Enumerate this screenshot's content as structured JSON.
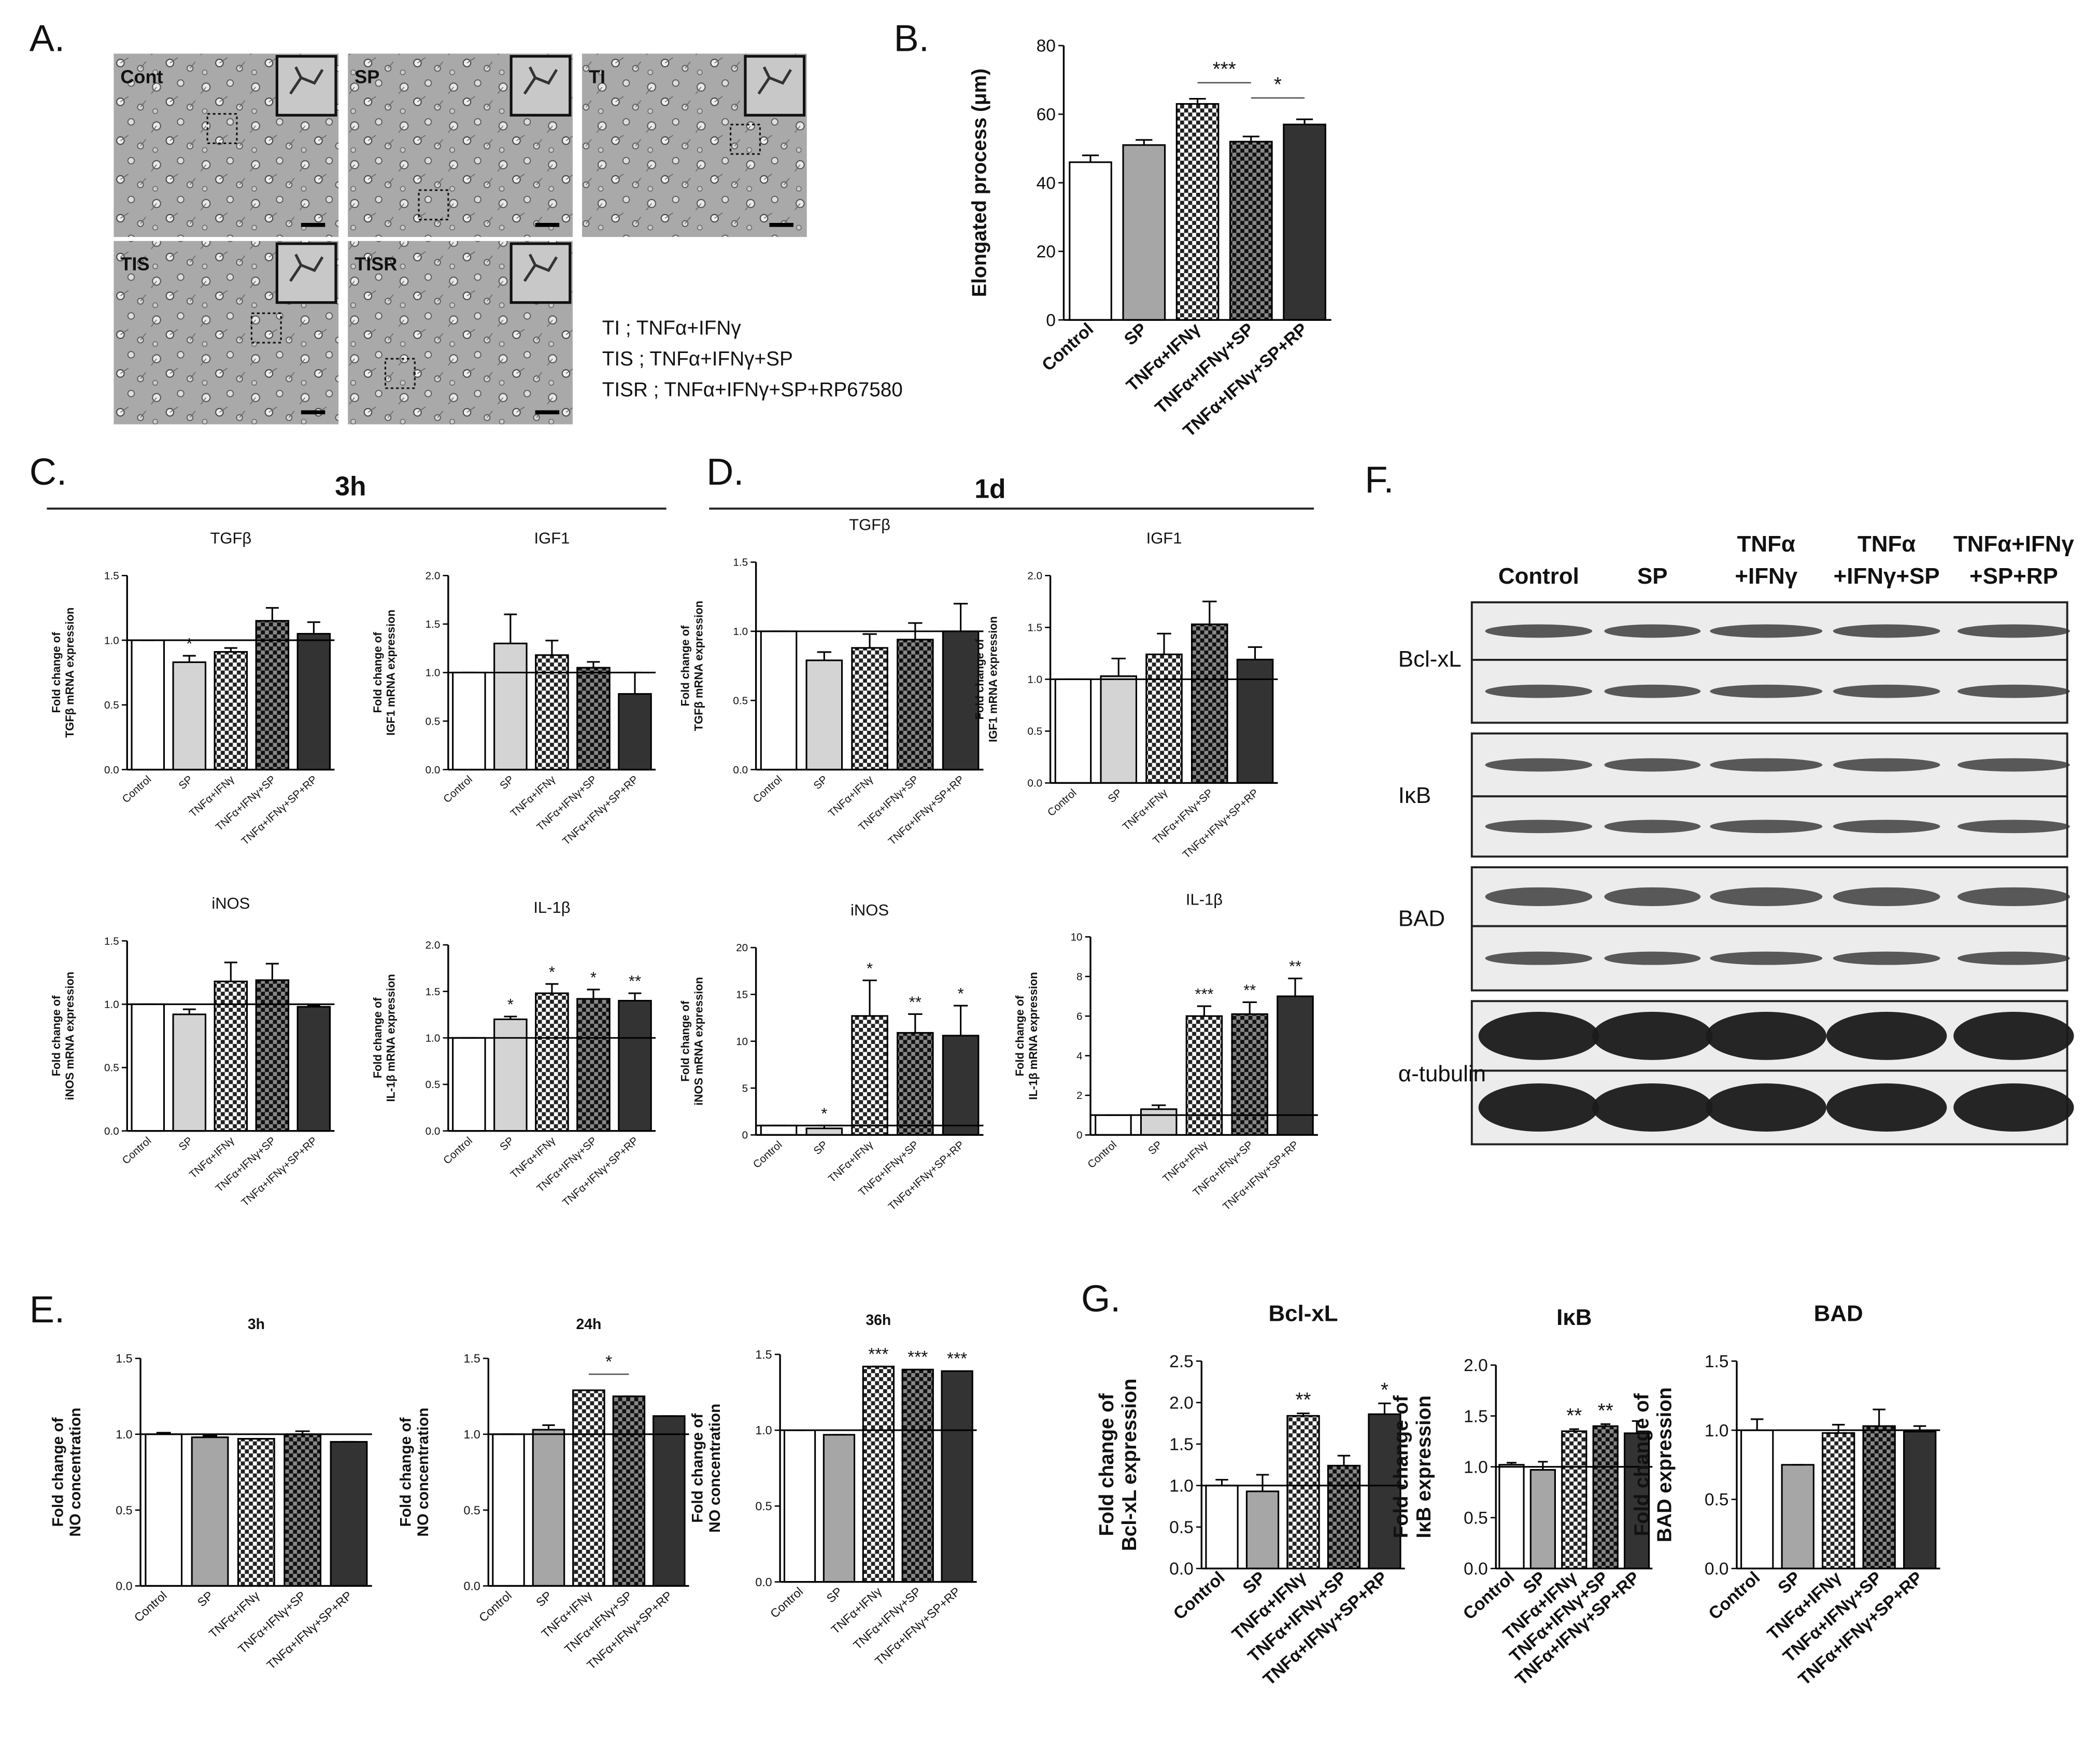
{
  "panel_labels": [
    "A.",
    "B.",
    "C.",
    "D.",
    "E.",
    "F.",
    "G."
  ],
  "time_headers": [
    "3h",
    "1d"
  ],
  "microscopy": {
    "images": [
      "Cont",
      "SP",
      "TI",
      "TIS",
      "TISR"
    ],
    "legend": [
      "TI ; TNFα+IFNγ",
      "TIS ; TNFα+IFNγ+SP",
      "TISR ; TNFα+IFNγ+SP+RP67580"
    ]
  },
  "western_blot": {
    "columns": [
      [
        "Control"
      ],
      [
        "SP"
      ],
      [
        "TNFα",
        "+IFNγ"
      ],
      [
        "TNFα",
        "+IFNγ+SP"
      ],
      [
        "TNFα+IFNγ",
        "+SP+RP"
      ]
    ],
    "rows": [
      "Bcl-xL",
      "IκB",
      "BAD",
      "α-tubulin"
    ]
  },
  "chart_data": [
    {
      "type": "bar",
      "ylabel": [
        "Elongated process (μm)"
      ],
      "categories": [
        "Control",
        "SP",
        "TNFα+IFNγ",
        "TNFα+IFNγ+SP",
        "TNFα+IFNγ+SP+RP"
      ],
      "values": [
        46,
        51,
        63,
        52,
        57
      ],
      "errors": [
        2,
        1.5,
        1.5,
        1.5,
        1.5
      ],
      "bar_fills": [
        "white",
        "mid-gray",
        "checker",
        "dark-checker",
        "black"
      ],
      "brackets": [
        {
          "from": 2,
          "to": 3,
          "text": "***"
        },
        {
          "from": 3,
          "to": 4,
          "text": "*"
        }
      ],
      "ylim": [
        0,
        80
      ],
      "yticks": [
        0,
        20,
        40,
        60,
        80
      ]
    },
    {
      "type": "bar",
      "title": "TGFβ",
      "ylabel": [
        "Fold change of",
        "TGFβ mRNA expression"
      ],
      "categories": [
        "Control",
        "SP",
        "TNFα+IFNγ",
        "TNFα+IFNγ+SP",
        "TNFα+IFNγ+SP+RP"
      ],
      "values": [
        1.0,
        0.83,
        0.91,
        1.15,
        1.05
      ],
      "errors": [
        0,
        0.05,
        0.03,
        0.1,
        0.09
      ],
      "bar_fills": [
        "white",
        "gray",
        "checker",
        "dark-checker",
        "black"
      ],
      "significance": [
        null,
        "*",
        null,
        null,
        null
      ],
      "reference_line": 1,
      "ylim": [
        0,
        1.5
      ],
      "yticks": [
        {
          "value": 0,
          "label": "0.0"
        },
        {
          "value": 0.5,
          "label": "0.5"
        },
        {
          "value": 1,
          "label": "1.0"
        },
        {
          "value": 1.5,
          "label": "1.5"
        }
      ]
    },
    {
      "type": "bar",
      "title": "IGF1",
      "ylabel": [
        "Fold change of",
        "IGF1 mRNA expression"
      ],
      "categories": [
        "Control",
        "SP",
        "TNFα+IFNγ",
        "TNFα+IFNγ+SP",
        "TNFα+IFNγ+SP+RP"
      ],
      "values": [
        1.0,
        1.3,
        1.18,
        1.05,
        0.78
      ],
      "errors": [
        0,
        0.3,
        0.15,
        0.06,
        0.22
      ],
      "bar_fills": [
        "white",
        "gray",
        "checker",
        "dark-checker",
        "black"
      ],
      "reference_line": 1,
      "ylim": [
        0,
        2
      ],
      "yticks": [
        {
          "value": 0,
          "label": "0.0"
        },
        {
          "value": 0.5,
          "label": "0.5"
        },
        {
          "value": 1,
          "label": "1.0"
        },
        {
          "value": 1.5,
          "label": "1.5"
        },
        {
          "value": 2,
          "label": "2.0"
        }
      ]
    },
    {
      "type": "bar",
      "title": "iNOS",
      "ylabel": [
        "Fold change of",
        "iNOS mRNA expression"
      ],
      "categories": [
        "Control",
        "SP",
        "TNFα+IFNγ",
        "TNFα+IFNγ+SP",
        "TNFα+IFNγ+SP+RP"
      ],
      "values": [
        1.0,
        0.92,
        1.18,
        1.19,
        0.98
      ],
      "errors": [
        0,
        0.04,
        0.15,
        0.13,
        0.01
      ],
      "bar_fills": [
        "white",
        "gray",
        "checker",
        "dark-checker",
        "black"
      ],
      "reference_line": 1,
      "ylim": [
        0,
        1.5
      ],
      "yticks": [
        {
          "value": 0,
          "label": "0.0"
        },
        {
          "value": 0.5,
          "label": "0.5"
        },
        {
          "value": 1,
          "label": "1.0"
        },
        {
          "value": 1.5,
          "label": "1.5"
        }
      ]
    },
    {
      "type": "bar",
      "title": "IL-1β",
      "ylabel": [
        "Fold change of",
        "IL-1β mRNA expression"
      ],
      "categories": [
        "Control",
        "SP",
        "TNFα+IFNγ",
        "TNFα+IFNγ+SP",
        "TNFα+IFNγ+SP+RP"
      ],
      "values": [
        1.0,
        1.2,
        1.48,
        1.42,
        1.4
      ],
      "errors": [
        0,
        0.03,
        0.1,
        0.1,
        0.08
      ],
      "bar_fills": [
        "white",
        "gray",
        "checker",
        "dark-checker",
        "black"
      ],
      "significance": [
        null,
        "*",
        "*",
        "*",
        "**"
      ],
      "reference_line": 1,
      "ylim": [
        0,
        2
      ],
      "yticks": [
        {
          "value": 0,
          "label": "0.0"
        },
        {
          "value": 0.5,
          "label": "0.5"
        },
        {
          "value": 1,
          "label": "1.0"
        },
        {
          "value": 1.5,
          "label": "1.5"
        },
        {
          "value": 2,
          "label": "2.0"
        }
      ]
    },
    {
      "type": "bar",
      "title": "TGFβ",
      "ylabel": [
        "Fold change of",
        "TGFβ mRNA expression"
      ],
      "categories": [
        "Control",
        "SP",
        "TNFα+IFNγ",
        "TNFα+IFNγ+SP",
        "TNFα+IFNγ+SP+RP"
      ],
      "values": [
        1.0,
        0.79,
        0.88,
        0.94,
        1.0
      ],
      "errors": [
        0,
        0.06,
        0.1,
        0.12,
        0.2
      ],
      "bar_fills": [
        "white",
        "gray",
        "checker",
        "dark-checker",
        "black"
      ],
      "reference_line": 1,
      "ylim": [
        0,
        1.5
      ],
      "yticks": [
        {
          "value": 0,
          "label": "0.0"
        },
        {
          "value": 0.5,
          "label": "0.5"
        },
        {
          "value": 1,
          "label": "1.0"
        },
        {
          "value": 1.5,
          "label": "1.5"
        }
      ]
    },
    {
      "type": "bar",
      "title": "IGF1",
      "ylabel": [
        "Fold change of",
        "IGF1 mRNA expression"
      ],
      "categories": [
        "Control",
        "SP",
        "TNFα+IFNγ",
        "TNFα+IFNγ+SP",
        "TNFα+IFNγ+SP+RP"
      ],
      "values": [
        1.0,
        1.03,
        1.24,
        1.53,
        1.19
      ],
      "errors": [
        0,
        0.17,
        0.2,
        0.22,
        0.12
      ],
      "bar_fills": [
        "white",
        "gray",
        "checker",
        "dark-checker",
        "black"
      ],
      "reference_line": 1,
      "ylim": [
        0,
        2
      ],
      "yticks": [
        {
          "value": 0,
          "label": "0.0"
        },
        {
          "value": 0.5,
          "label": "0.5"
        },
        {
          "value": 1,
          "label": "1.0"
        },
        {
          "value": 1.5,
          "label": "1.5"
        },
        {
          "value": 2,
          "label": "2.0"
        }
      ]
    },
    {
      "type": "bar",
      "title": "iNOS",
      "ylabel": [
        "Fold change of",
        "iNOS mRNA expression"
      ],
      "categories": [
        "Control",
        "SP",
        "TNFα+IFNγ",
        "TNFα+IFNγ+SP",
        "TNFα+IFNγ+SP+RP"
      ],
      "values": [
        1.0,
        0.7,
        12.7,
        10.9,
        10.6
      ],
      "errors": [
        0,
        0.3,
        3.8,
        2,
        3.2
      ],
      "bar_fills": [
        "white",
        "gray",
        "checker",
        "dark-checker",
        "black"
      ],
      "significance": [
        null,
        "*",
        "*",
        "**",
        "*"
      ],
      "reference_line": 1,
      "ylim": [
        0,
        20
      ],
      "yticks": [
        0,
        5,
        10,
        15,
        20
      ]
    },
    {
      "type": "bar",
      "title": "IL-1β",
      "ylabel": [
        "Fold change of",
        "IL-1β mRNA expression"
      ],
      "categories": [
        "Control",
        "SP",
        "TNFα+IFNγ",
        "TNFα+IFNγ+SP",
        "TNFα+IFNγ+SP+RP"
      ],
      "values": [
        1.0,
        1.3,
        6.0,
        6.1,
        7.0
      ],
      "errors": [
        0,
        0.2,
        0.5,
        0.6,
        0.9
      ],
      "bar_fills": [
        "white",
        "gray",
        "checker",
        "dark-checker",
        "black"
      ],
      "significance": [
        null,
        null,
        "***",
        "**",
        "**"
      ],
      "reference_line": 1,
      "ylim": [
        0,
        10
      ],
      "yticks": [
        0,
        2,
        4,
        6,
        8,
        10
      ]
    },
    {
      "type": "bar",
      "title": "3h",
      "ylabel": [
        "Fold change of",
        "NO concentration"
      ],
      "categories": [
        "Control",
        "SP",
        "TNFα+IFNγ",
        "TNFα+IFNγ+SP",
        "TNFα+IFNγ+SP+RP"
      ],
      "values": [
        1.0,
        0.98,
        0.97,
        1.0,
        0.95
      ],
      "errors": [
        0.01,
        0.01,
        0,
        0.02,
        0
      ],
      "bar_fills": [
        "white",
        "mid-gray",
        "checker",
        "dark-checker",
        "black"
      ],
      "reference_line": 1,
      "ylim": [
        0,
        1.5
      ],
      "yticks": [
        {
          "value": 0,
          "label": "0.0"
        },
        {
          "value": 0.5,
          "label": "0.5"
        },
        {
          "value": 1,
          "label": "1.0"
        },
        {
          "value": 1.5,
          "label": "1.5"
        }
      ]
    },
    {
      "type": "bar",
      "title": "24h",
      "ylabel": [
        "Fold change of",
        "NO concentration"
      ],
      "categories": [
        "Control",
        "SP",
        "TNFα+IFNγ",
        "TNFα+IFNγ+SP",
        "TNFα+IFNγ+SP+RP"
      ],
      "values": [
        1.0,
        1.03,
        1.29,
        1.25,
        1.12
      ],
      "errors": [
        0,
        0.03,
        0,
        0,
        0
      ],
      "bar_fills": [
        "white",
        "mid-gray",
        "checker",
        "dark-checker",
        "black"
      ],
      "brackets": [
        {
          "from": 2,
          "to": 3,
          "text": "*"
        }
      ],
      "reference_line": 1,
      "ylim": [
        0,
        1.5
      ],
      "yticks": [
        {
          "value": 0,
          "label": "0.0"
        },
        {
          "value": 0.5,
          "label": "0.5"
        },
        {
          "value": 1,
          "label": "1.0"
        },
        {
          "value": 1.5,
          "label": "1.5"
        }
      ]
    },
    {
      "type": "bar",
      "title": "36h",
      "ylabel": [
        "Fold change of",
        "NO concentration"
      ],
      "categories": [
        "Control",
        "SP",
        "TNFα+IFNγ",
        "TNFα+IFNγ+SP",
        "TNFα+IFNγ+SP+RP"
      ],
      "values": [
        1.0,
        0.97,
        1.42,
        1.4,
        1.39
      ],
      "errors": [
        0,
        0,
        0,
        0,
        0
      ],
      "bar_fills": [
        "white",
        "mid-gray",
        "checker",
        "dark-checker",
        "black"
      ],
      "significance": [
        null,
        null,
        "***",
        "***",
        "***"
      ],
      "reference_line": 1,
      "ylim": [
        0,
        1.5
      ],
      "yticks": [
        {
          "value": 0,
          "label": "0.0"
        },
        {
          "value": 0.5,
          "label": "0.5"
        },
        {
          "value": 1,
          "label": "1.0"
        },
        {
          "value": 1.5,
          "label": "1.5"
        }
      ]
    },
    {
      "type": "bar",
      "title": "Bcl-xL",
      "ylabel": [
        "Fold change of",
        "Bcl-xL expression"
      ],
      "categories": [
        "Control",
        "SP",
        "TNFα+IFNγ",
        "TNFα+IFNγ+SP",
        "TNFα+IFNγ+SP+RP"
      ],
      "values": [
        1.0,
        0.93,
        1.84,
        1.24,
        1.86
      ],
      "errors": [
        0.07,
        0.2,
        0.03,
        0.12,
        0.13
      ],
      "bar_fills": [
        "white",
        "mid-gray",
        "checker",
        "dark-checker",
        "black"
      ],
      "significance": [
        null,
        null,
        "**",
        null,
        "*"
      ],
      "reference_line": 1,
      "ylim": [
        0,
        2.5
      ],
      "yticks": [
        {
          "value": 0,
          "label": "0.0"
        },
        {
          "value": 0.5,
          "label": "0.5"
        },
        {
          "value": 1,
          "label": "1.0"
        },
        {
          "value": 1.5,
          "label": "1.5"
        },
        {
          "value": 2,
          "label": "2.0"
        },
        {
          "value": 2.5,
          "label": "2.5"
        }
      ]
    },
    {
      "type": "bar",
      "title": "IκB",
      "ylabel": [
        "Fold change of",
        "IκB expression"
      ],
      "categories": [
        "Control",
        "SP",
        "TNFα+IFNγ",
        "TNFα+IFNγ+SP",
        "TNFα+IFNγ+SP+RP"
      ],
      "values": [
        1.02,
        0.97,
        1.35,
        1.4,
        1.33
      ],
      "errors": [
        0.02,
        0.08,
        0.02,
        0.02,
        0.12
      ],
      "bar_fills": [
        "white",
        "mid-gray",
        "checker",
        "dark-checker",
        "black"
      ],
      "significance": [
        null,
        null,
        "**",
        "**",
        null
      ],
      "reference_line": 1,
      "ylim": [
        0,
        2
      ],
      "yticks": [
        {
          "value": 0,
          "label": "0.0"
        },
        {
          "value": 0.5,
          "label": "0.5"
        },
        {
          "value": 1,
          "label": "1.0"
        },
        {
          "value": 1.5,
          "label": "1.5"
        },
        {
          "value": 2,
          "label": "2.0"
        }
      ]
    },
    {
      "type": "bar",
      "title": "BAD",
      "ylabel": [
        "Fold change of",
        "BAD expression"
      ],
      "categories": [
        "Control",
        "SP",
        "TNFα+IFNγ",
        "TNFα+IFNγ+SP",
        "TNFα+IFNγ+SP+RP"
      ],
      "values": [
        1.0,
        0.75,
        0.98,
        1.03,
        0.99
      ],
      "errors": [
        0.08,
        0,
        0.06,
        0.12,
        0.04
      ],
      "bar_fills": [
        "white",
        "mid-gray",
        "checker",
        "dark-checker",
        "black"
      ],
      "reference_line": 1,
      "ylim": [
        0,
        1.5
      ],
      "yticks": [
        {
          "value": 0,
          "label": "0.0"
        },
        {
          "value": 0.5,
          "label": "0.5"
        },
        {
          "value": 1,
          "label": "1.0"
        },
        {
          "value": 1.5,
          "label": "1.5"
        }
      ]
    }
  ]
}
